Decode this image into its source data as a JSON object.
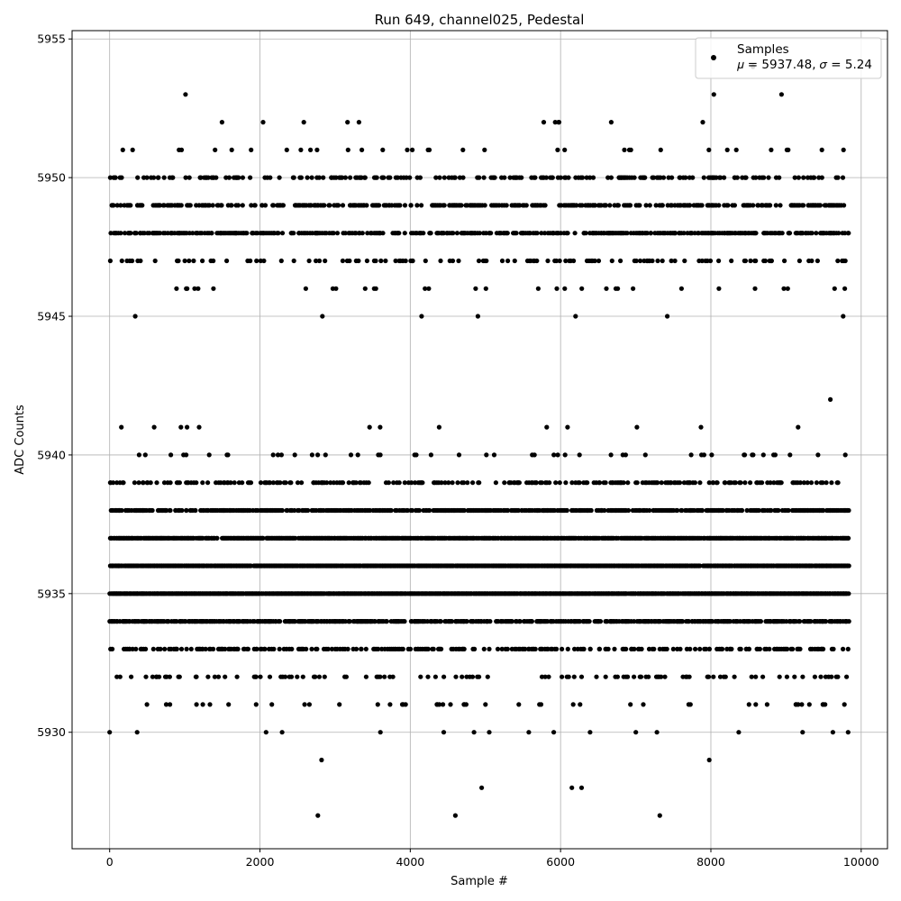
{
  "chart_data": {
    "type": "scatter",
    "title": "Run 649, channel025, Pedestal",
    "xlabel": "Sample #",
    "ylabel": "ADC Counts",
    "xlim": [
      -500,
      10350
    ],
    "ylim": [
      5925.8,
      5955.3
    ],
    "xticks": [
      0,
      2000,
      4000,
      6000,
      8000,
      10000
    ],
    "xtick_labels": [
      "0",
      "2000",
      "4000",
      "6000",
      "8000",
      "10000"
    ],
    "yticks": [
      5930,
      5935,
      5940,
      5945,
      5950,
      5955
    ],
    "ytick_labels": [
      "5930",
      "5935",
      "5940",
      "5945",
      "5950",
      "5955"
    ],
    "grid": true,
    "legend_position": "top-right",
    "series": [
      {
        "name": "Samples",
        "label_stats": "𝜇 = 5937.48, 𝜎 = 5.24",
        "color": "#000000",
        "n_samples": 9830,
        "mean": 5937.48,
        "std": 5.24,
        "level_density": {
          "5927": 0.0003,
          "5928": 0.0005,
          "5929": 0.006,
          "5930": 0.02,
          "5931": 0.06,
          "5932": 0.14,
          "5933": 0.32,
          "5934": 0.62,
          "5935": 0.95,
          "5936": 0.93,
          "5937": 0.88,
          "5938": 0.58,
          "5939": 0.3,
          "5940": 0.07,
          "5941": 0.01,
          "5942": 0.0003,
          "5945": 0.002,
          "5946": 0.03,
          "5947": 0.15,
          "5948": 0.42,
          "5949": 0.38,
          "5950": 0.25,
          "5951": 0.05,
          "5952": 0.015,
          "5953": 0.002,
          "5954": 0.0002
        },
        "outliers": [
          [
            2770,
            5927
          ],
          [
            4600,
            5927
          ],
          [
            7320,
            5927
          ],
          [
            4950,
            5928
          ],
          [
            6150,
            5928
          ],
          [
            6280,
            5928
          ],
          [
            9590,
            5942
          ],
          [
            1010,
            5953
          ],
          [
            8040,
            5953
          ],
          [
            8940,
            5953
          ],
          [
            8560,
            5954
          ],
          [
            340,
            5945
          ],
          [
            2830,
            5945
          ],
          [
            4150,
            5945
          ],
          [
            4900,
            5945
          ],
          [
            6200,
            5945
          ],
          [
            7420,
            5945
          ],
          [
            9760,
            5945
          ],
          [
            0,
            5930
          ],
          [
            2820,
            5929
          ]
        ]
      }
    ]
  }
}
